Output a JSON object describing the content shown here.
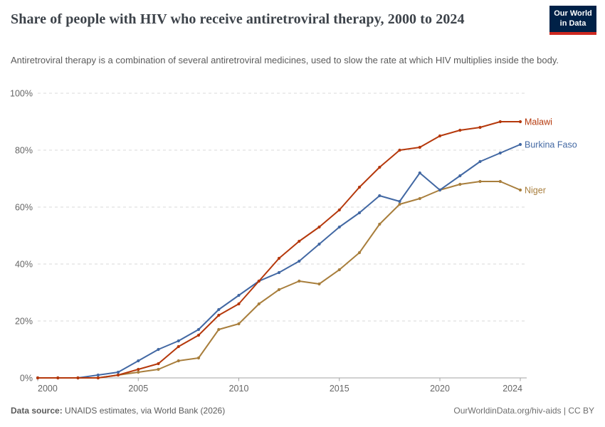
{
  "header": {
    "title": "Share of people with HIV who receive antiretroviral therapy, 2000 to 2024",
    "subtitle": "Antiretroviral therapy is a combination of several antiretroviral medicines, used to slow the rate at which HIV multiplies inside the body."
  },
  "logo": {
    "line1": "Our World",
    "line2": "in Data",
    "bg_color": "#002147",
    "stripe_color": "#CE2820"
  },
  "footer": {
    "source_label": "Data source:",
    "source_text": " UNAIDS estimates, via World Bank (2026)",
    "credit": "OurWorldinData.org/hiv-aids | CC BY"
  },
  "chart_data": {
    "type": "line",
    "title": "Share of people with HIV who receive antiretroviral therapy, 2000 to 2024",
    "xlabel": "",
    "ylabel": "",
    "xlim": [
      2000,
      2024
    ],
    "ylim": [
      0,
      100
    ],
    "grid": "horizontal-dashed",
    "legend_position": "end-of-line-labels",
    "y_tick_suffix": "%",
    "x_ticks": [
      2000,
      2005,
      2010,
      2015,
      2020,
      2024
    ],
    "y_ticks": [
      0,
      20,
      40,
      60,
      80,
      100
    ],
    "x": [
      2000,
      2001,
      2002,
      2003,
      2004,
      2005,
      2006,
      2007,
      2008,
      2009,
      2010,
      2011,
      2012,
      2013,
      2014,
      2015,
      2016,
      2017,
      2018,
      2019,
      2020,
      2021,
      2022,
      2023,
      2024
    ],
    "series": [
      {
        "name": "Malawi",
        "color": "#B5380B",
        "values": [
          0,
          0,
          0,
          0,
          1,
          3,
          5,
          11,
          15,
          22,
          26,
          34,
          42,
          48,
          53,
          59,
          67,
          74,
          80,
          81,
          85,
          87,
          88,
          90,
          90
        ]
      },
      {
        "name": "Burkina Faso",
        "color": "#4268A3",
        "values": [
          0,
          0,
          0,
          1,
          2,
          6,
          10,
          13,
          17,
          24,
          29,
          34,
          37,
          41,
          47,
          53,
          58,
          64,
          62,
          72,
          66,
          71,
          76,
          79,
          82
        ]
      },
      {
        "name": "Niger",
        "color": "#A87E3C",
        "values": [
          0,
          0,
          0,
          0,
          1,
          2,
          3,
          6,
          7,
          17,
          19,
          26,
          31,
          34,
          33,
          38,
          44,
          54,
          61,
          63,
          66,
          68,
          69,
          69,
          66
        ]
      }
    ],
    "axis_color": "#a3a3a3",
    "gridline_color": "#d9d9d9",
    "tick_label_color": "#666666"
  }
}
